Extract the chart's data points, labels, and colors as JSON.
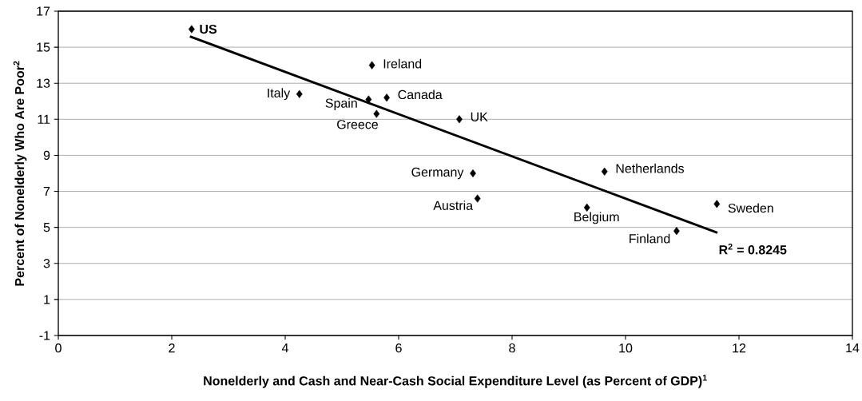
{
  "chart_data": {
    "type": "scatter",
    "xlabel": "Nonelderly and Cash and Near-Cash Social Expenditure Level (as Percent of GDP)$^{1}$",
    "ylabel": "Percent of Nonelderly Who Are Poor$^{2}$",
    "series": [
      {
        "color": "#000000",
        "marker": "diamond",
        "x": [
          2.35,
          5.53,
          4.25,
          5.47,
          5.79,
          5.61,
          7.07,
          7.31,
          7.39,
          9.63,
          9.32,
          11.61,
          10.9
        ],
        "values": [
          16.0,
          14.0,
          12.4,
          12.1,
          12.2,
          11.3,
          11.0,
          8.0,
          6.6,
          8.1,
          6.1,
          6.3,
          4.8
        ]
      },
      {
        "type": "line",
        "color": "#000000",
        "marker": "none",
        "line_style": "solid",
        "x": [
          2.32,
          11.62
        ],
        "values": [
          15.6,
          4.7
        ]
      }
    ],
    "annotations": [
      {
        "text": "US",
        "x": 2.35,
        "y": 16.0
      },
      {
        "text": "Ireland",
        "x": 5.53,
        "y": 14.0
      },
      {
        "text": "Italy",
        "x": 4.25,
        "y": 12.4
      },
      {
        "text": "Spain",
        "x": 5.47,
        "y": 12.1
      },
      {
        "text": "Canada",
        "x": 5.79,
        "y": 12.2
      },
      {
        "text": "Greece",
        "x": 5.61,
        "y": 11.3
      },
      {
        "text": "UK",
        "x": 7.07,
        "y": 11.0
      },
      {
        "text": "Germany",
        "x": 7.31,
        "y": 8.0
      },
      {
        "text": "Austria",
        "x": 7.39,
        "y": 6.6
      },
      {
        "text": "Netherlands",
        "x": 9.63,
        "y": 8.1
      },
      {
        "text": "Belgium",
        "x": 9.32,
        "y": 6.1
      },
      {
        "text": "Sweden",
        "x": 11.61,
        "y": 6.3
      },
      {
        "text": "Finland",
        "x": 10.9,
        "y": 4.8
      },
      {
        "text": "R$^{2}$ = 0.8245",
        "x": 11.62,
        "y": 4.7
      }
    ],
    "xlim": [
      0,
      14
    ],
    "ylim": [
      -1,
      17
    ],
    "xticks": [
      0,
      2,
      4,
      6,
      8,
      10,
      12,
      14
    ],
    "yticks": [
      -1,
      1,
      3,
      5,
      7,
      9,
      11,
      13,
      15,
      17
    ],
    "grid": "y"
  }
}
